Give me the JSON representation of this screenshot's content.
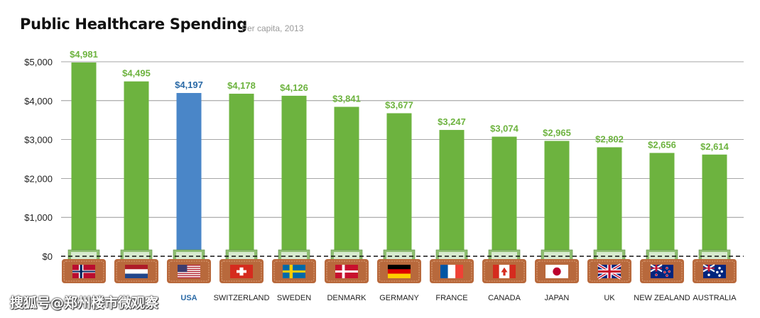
{
  "header": {
    "title": "Public Healthcare Spending",
    "subtitle": "Per capita, 2013"
  },
  "watermark": "搜狐号@郑州楼市微观察",
  "colors": {
    "bar": "#6db33f",
    "highlight_bar": "#4a86c8",
    "value_label": "#6db33f",
    "highlight_label": "#2b6aa6",
    "wallet": "#b8693c",
    "gridline": "#888888",
    "baseline": "#111111"
  },
  "chart_data": {
    "type": "bar",
    "title": "Public Healthcare Spending",
    "subtitle": "Per capita, 2013",
    "xlabel": "",
    "ylabel": "",
    "ylim": [
      0,
      5000
    ],
    "yticks": [
      0,
      1000,
      2000,
      3000,
      4000,
      5000
    ],
    "ytick_labels": [
      "$0",
      "$1,000",
      "$2,000",
      "$3,000",
      "$4,000",
      "$5,000"
    ],
    "grid": true,
    "categories": [
      "",
      "",
      "USA",
      "SWITZERLAND",
      "SWEDEN",
      "DENMARK",
      "GERMANY",
      "FRANCE",
      "CANADA",
      "JAPAN",
      "UK",
      "NEW ZEALAND",
      "AUSTRALIA"
    ],
    "values": [
      4981,
      4495,
      4197,
      4178,
      4126,
      3841,
      3677,
      3247,
      3074,
      2965,
      2802,
      2656,
      2614
    ],
    "value_labels": [
      "$4,981",
      "$4,495",
      "$4,197",
      "$4,178",
      "$4,126",
      "$3,841",
      "$3,677",
      "$3,247",
      "$3,074",
      "$2,965",
      "$2,802",
      "$2,656",
      "$2,614"
    ],
    "highlight_index": 2,
    "flag_icons": [
      "norway-flag-icon",
      "netherlands-flag-icon",
      "usa-flag-icon",
      "switzerland-flag-icon",
      "sweden-flag-icon",
      "denmark-flag-icon",
      "germany-flag-icon",
      "france-flag-icon",
      "canada-flag-icon",
      "japan-flag-icon",
      "uk-flag-icon",
      "new-zealand-flag-icon",
      "australia-flag-icon"
    ]
  }
}
